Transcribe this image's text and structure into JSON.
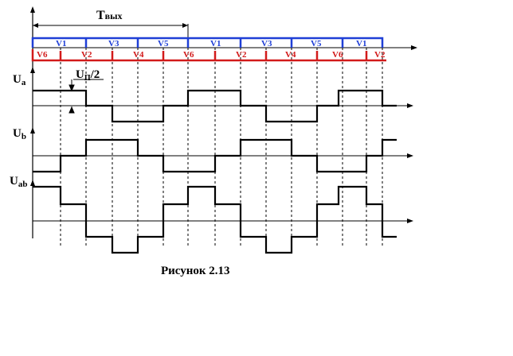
{
  "period_label": "T",
  "period_label_sub": "вых",
  "half_voltage_label": "U",
  "half_voltage_sub": "П",
  "half_voltage_suffix": "/2",
  "axes": {
    "ua": {
      "main": "U",
      "sub": "a"
    },
    "ub": {
      "main": "U",
      "sub": "b"
    },
    "uab": {
      "main": "U",
      "sub": "ab"
    }
  },
  "switches_top": [
    "V1",
    "V3",
    "V5",
    "V1",
    "V3",
    "V5",
    "V1"
  ],
  "switches_bottom": [
    "V6",
    "V2",
    "V4",
    "V6",
    "V2",
    "V4",
    "V6",
    "V2"
  ],
  "caption": "Рисунок 2.13",
  "colors": {
    "top_row": "#1f3fd6",
    "bottom_row": "#d21a1a",
    "wave": "#000000"
  }
}
